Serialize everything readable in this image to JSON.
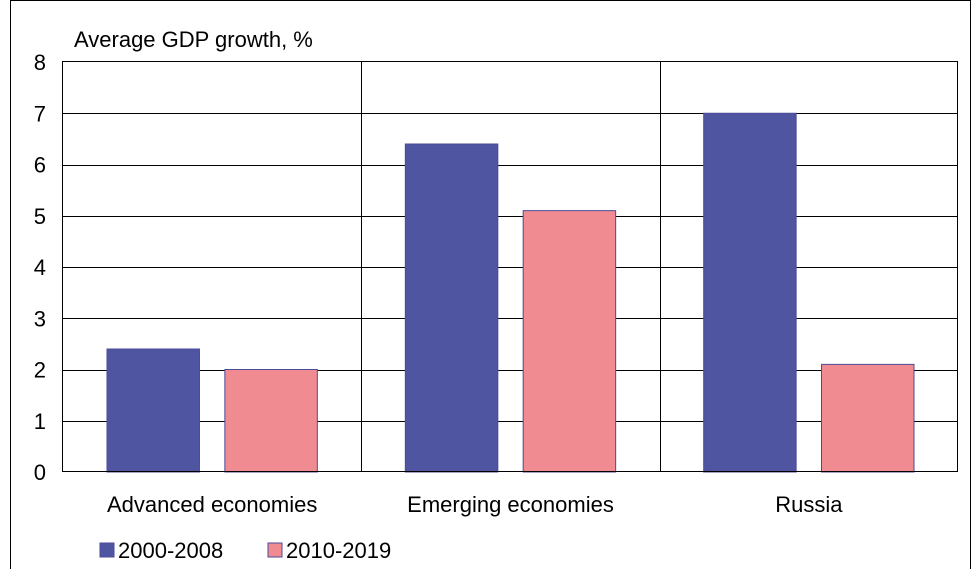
{
  "chart_data": {
    "type": "bar",
    "title": "Average GDP growth, %",
    "xlabel": "",
    "ylabel": "",
    "categories": [
      "Advanced economies",
      "Emerging economies",
      "Russia"
    ],
    "series": [
      {
        "name": "2000-2008",
        "values": [
          2.4,
          6.4,
          7.0
        ],
        "color": "#4f55a1"
      },
      {
        "name": "2010-2019",
        "values": [
          2.0,
          5.1,
          2.1
        ],
        "color": "#f08b91"
      }
    ],
    "ylim": [
      0,
      8
    ],
    "yticks": [
      "0",
      "1",
      "2",
      "3",
      "4",
      "5",
      "6",
      "7",
      "8"
    ],
    "grid": true,
    "legend_position": "bottom-left"
  }
}
